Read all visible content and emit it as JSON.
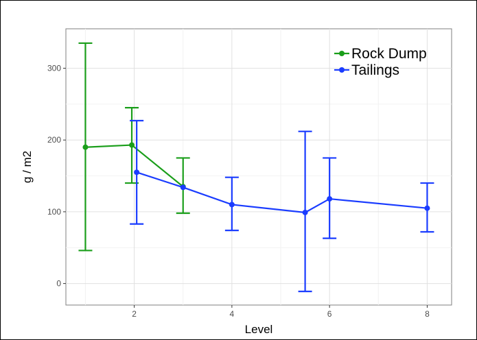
{
  "chart_data": {
    "type": "line",
    "xlabel": "Level",
    "ylabel": "g / m2",
    "xlim": [
      0.6,
      8.5
    ],
    "ylim": [
      -30,
      355
    ],
    "x_ticks": [
      2,
      4,
      6,
      8
    ],
    "y_ticks": [
      0,
      100,
      200,
      300
    ],
    "grid": true,
    "legend_position": "top-right",
    "series": [
      {
        "name": "Rock Dump",
        "color": "#1a9e1a",
        "points": [
          {
            "x": 1,
            "y": 190,
            "ymin": 46,
            "ymax": 335
          },
          {
            "x": 1.95,
            "y": 193,
            "ymin": 140,
            "ymax": 245
          },
          {
            "x": 3,
            "y": 135,
            "ymin": 98,
            "ymax": 175
          }
        ]
      },
      {
        "name": "Tailings",
        "color": "#1a3cff",
        "points": [
          {
            "x": 2.05,
            "y": 155,
            "ymin": 83,
            "ymax": 227
          },
          {
            "x": 3,
            "y": 134,
            "ymin": 134,
            "ymax": 134
          },
          {
            "x": 4,
            "y": 110,
            "ymin": 74,
            "ymax": 148
          },
          {
            "x": 5.5,
            "y": 99,
            "ymin": -11,
            "ymax": 212
          },
          {
            "x": 6,
            "y": 118,
            "ymin": 63,
            "ymax": 175
          },
          {
            "x": 8,
            "y": 105,
            "ymin": 72,
            "ymax": 140
          }
        ]
      }
    ]
  }
}
